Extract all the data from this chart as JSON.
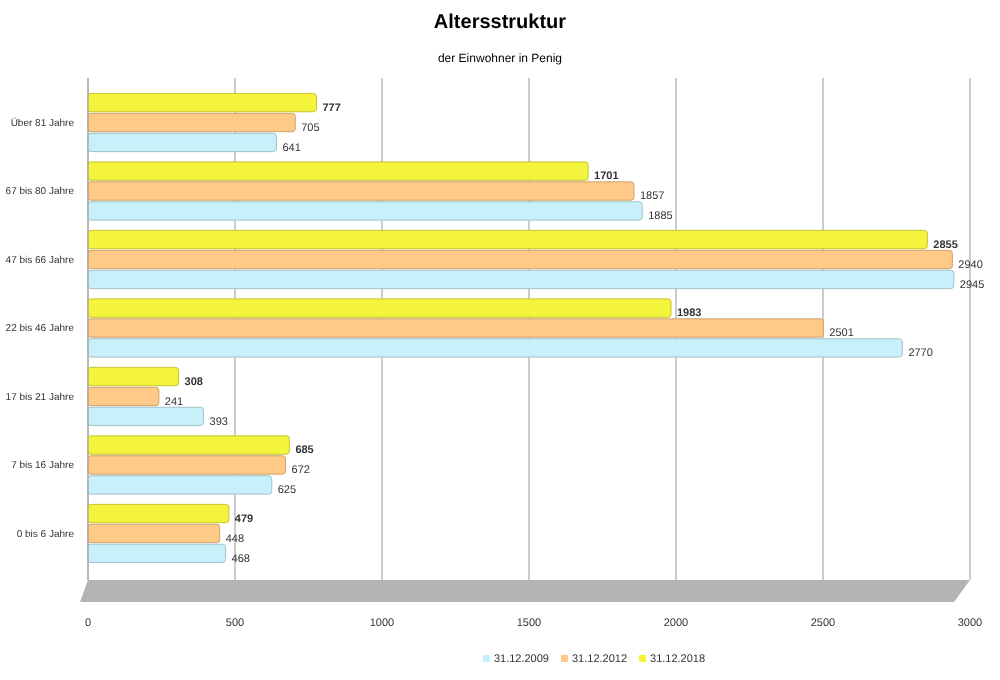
{
  "chart_data": {
    "type": "bar",
    "orientation": "horizontal",
    "title": "Altersstruktur",
    "subtitle": "der Einwohner in Penig",
    "categories": [
      "Über 81 Jahre",
      "67 bis 80 Jahre",
      "47 bis 66 Jahre",
      "22 bis 46 Jahre",
      "17 bis 21 Jahre",
      "7 bis 16 Jahre",
      "0 bis 6 Jahre"
    ],
    "series": [
      {
        "name": "31.12.2009",
        "color": "#c8f0fa",
        "values": [
          641,
          1885,
          2945,
          2770,
          393,
          625,
          468
        ]
      },
      {
        "name": "31.12.2012",
        "color": "#ffc987",
        "values": [
          705,
          1857,
          2940,
          2501,
          241,
          672,
          448
        ]
      },
      {
        "name": "31.12.2018",
        "color": "#f4f43c",
        "values": [
          777,
          1701,
          2855,
          1983,
          308,
          685,
          479
        ]
      }
    ],
    "xlim": [
      0,
      3000
    ],
    "xticks": [
      0,
      500,
      1000,
      1500,
      2000,
      2500,
      3000
    ],
    "grid": "x",
    "legend": "bottom",
    "data_labels": true
  }
}
